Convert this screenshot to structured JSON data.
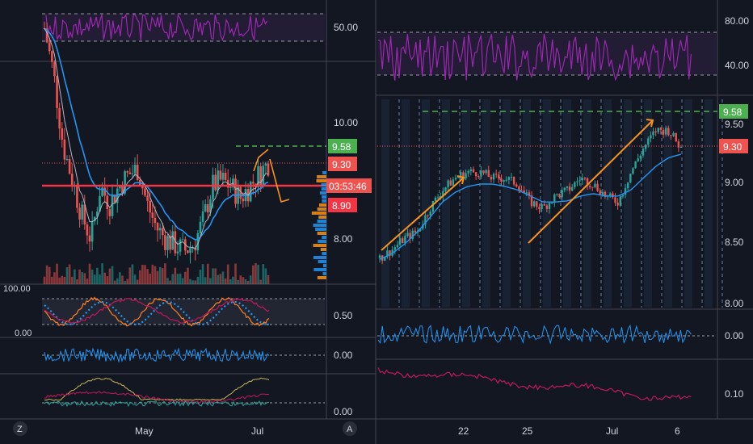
{
  "colors": {
    "background": "#131722",
    "grid": "#2a2e39",
    "up": "#26a69a",
    "down": "#ef5350",
    "rsi": "#9c27b0",
    "ema": "#2196f3",
    "trend": "#f7931a",
    "target": "#4caf50",
    "red_line": "#f23645"
  },
  "left_panel": {
    "corner_logo": "Z",
    "time_axis": [
      "May",
      "Jul"
    ],
    "rsi_axis": [
      "50.00"
    ],
    "price_axis": [
      "10.00",
      "8.00"
    ],
    "price_tags": {
      "target": "9.58",
      "last": "9.30",
      "countdown": "03:53:46",
      "stop": "8.90"
    },
    "stoch_axis": [
      "100.00",
      "0.00",
      "0.50"
    ],
    "momentum_axis": [
      "0.00"
    ],
    "bottom_axis": [
      "0.00"
    ]
  },
  "right_panel": {
    "corner_logo": "A",
    "time_axis": [
      "22",
      "25",
      "Jul",
      "6"
    ],
    "rsi_axis": [
      "80.00",
      "40.00"
    ],
    "price_axis": [
      "9.50",
      "9.00",
      "8.50",
      "8.00"
    ],
    "price_tags": {
      "target": "9.58",
      "last": "9.30"
    },
    "osc_axis": [
      "0.00"
    ],
    "vol_axis": [
      "0.10"
    ]
  },
  "chart_data": [
    {
      "type": "line",
      "title": "",
      "panel": "left",
      "description_of_series": "daily candlestick price with moving averages, volume, RSI, stochastic and momentum sub-panes",
      "y_ticks": [
        10.0,
        8.0
      ],
      "x_ticks": [
        "May",
        "Jul"
      ],
      "levels": {
        "target": 9.58,
        "last": 9.3,
        "stop": 8.9
      },
      "series": [
        {
          "values": [
            11.6,
            10.8,
            9.6,
            9.0,
            8.4,
            8.0,
            8.9,
            8.6,
            8.9,
            9.1,
            9.2,
            8.6,
            8.2,
            8.0,
            7.9,
            7.8,
            7.9,
            8.3,
            8.9,
            9.0,
            8.9,
            8.7,
            8.9,
            9.1,
            9.3
          ]
        }
      ]
    },
    {
      "type": "line",
      "title": "",
      "panel": "right",
      "y_ticks": [
        9.5,
        9.0,
        8.5,
        8.0
      ],
      "x_ticks": [
        "22",
        "25",
        "Jul",
        "6"
      ],
      "levels": {
        "target": 9.58,
        "last": 9.3
      },
      "series": [
        {
          "values": [
            8.38,
            8.45,
            8.55,
            8.6,
            8.8,
            8.95,
            9.05,
            9.1,
            9.1,
            9.05,
            9.05,
            9.0,
            8.85,
            8.8,
            8.9,
            8.95,
            9.05,
            9.0,
            8.9,
            8.85,
            9.1,
            9.3,
            9.45,
            9.45,
            9.3
          ]
        },
        {
          "values": [
            8.37,
            8.42,
            8.5,
            8.6,
            8.72,
            8.85,
            8.93,
            8.98,
            9.0,
            9.0,
            8.98,
            8.95,
            8.9,
            8.85,
            8.85,
            8.86,
            8.9,
            8.92,
            8.9,
            8.9,
            8.95,
            9.05,
            9.15,
            9.22,
            9.25
          ]
        }
      ]
    }
  ]
}
